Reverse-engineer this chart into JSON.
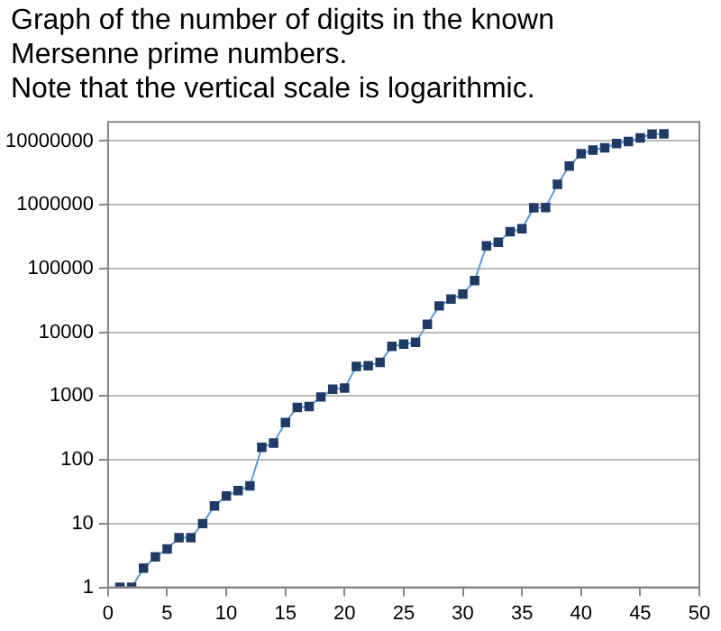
{
  "chart_data": {
    "type": "line",
    "title": "Graph of the number of digits in the known Mersenne prime numbers.",
    "subtitle": "Note that the vertical scale is logarithmic.",
    "x": [
      1,
      2,
      3,
      4,
      5,
      6,
      7,
      8,
      9,
      10,
      11,
      12,
      13,
      14,
      15,
      16,
      17,
      18,
      19,
      20,
      21,
      22,
      23,
      24,
      25,
      26,
      27,
      28,
      29,
      30,
      31,
      32,
      33,
      34,
      35,
      36,
      37,
      38,
      39,
      40,
      41,
      42,
      43,
      44,
      45,
      46,
      47
    ],
    "series": [
      {
        "color": "#1f3a64",
        "values": [
          1,
          1,
          2,
          3,
          4,
          6,
          6,
          10,
          19,
          27,
          33,
          39,
          157,
          183,
          386,
          664,
          687,
          969,
          1281,
          1332,
          2917,
          2993,
          3376,
          6002,
          6533,
          6987,
          13395,
          25962,
          33265,
          39751,
          65050,
          227832,
          258716,
          378632,
          420921,
          895932,
          909526,
          2098960,
          4053946,
          6320430,
          7235733,
          7816230,
          9152052,
          9808358,
          11185272,
          12837064,
          12978189
        ]
      }
    ],
    "log": "y",
    "xlim": [
      0,
      50
    ],
    "xticks": [
      0,
      5,
      10,
      15,
      20,
      25,
      30,
      35,
      40,
      45,
      50
    ],
    "ylim": [
      1,
      20000000
    ],
    "yticks": [
      1,
      10,
      100,
      1000,
      10000,
      100000,
      1000000,
      10000000
    ],
    "grid": "y",
    "legend": false,
    "marker": "square",
    "line_style": "solid"
  }
}
